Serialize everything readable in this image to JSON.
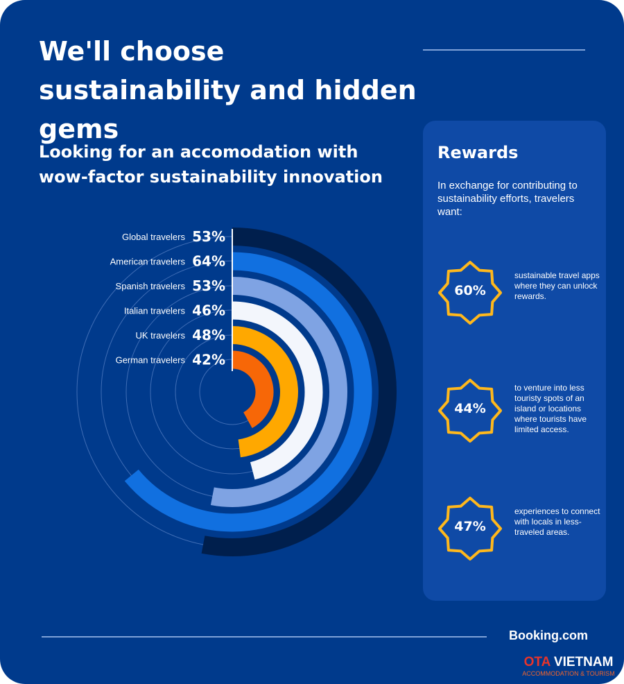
{
  "header": {
    "title": "We'll choose sustainability and hidden gems"
  },
  "chart_data": {
    "type": "radial-bar",
    "title": "Looking for an accomodation with wow-factor sustainability innovation",
    "unit": "%",
    "categories": [
      "Global travelers",
      "American travelers",
      "Spanish travelers",
      "Italian travelers",
      "UK travelers",
      "German travelers"
    ],
    "values": [
      53,
      64,
      53,
      46,
      48,
      42
    ],
    "value_labels": [
      "53%",
      "64%",
      "53%",
      "46%",
      "48%",
      "42%"
    ],
    "colors": [
      "#001f4d",
      "#1170e0",
      "#7fa3e3",
      "#f3f6fc",
      "#ffa800",
      "#f76707"
    ]
  },
  "rewards": {
    "title": "Rewards",
    "intro": "In exchange for contributing to sustainability efforts, travelers want:",
    "badge_color": "#ffb81c",
    "items": [
      {
        "value": "60%",
        "text": "sustainable travel apps where they can unlock rewards."
      },
      {
        "value": "44%",
        "text": "to venture into less touristy spots of an island or locations where tourists have limited access."
      },
      {
        "value": "47%",
        "text": "experiences to connect with locals in less-traveled areas."
      }
    ]
  },
  "footer": {
    "brand": "Booking.com"
  },
  "watermark": {
    "ota": "OTA",
    "vietnam": "VIETNAM",
    "tagline": "ACCOMMODATION & TOURISM"
  }
}
